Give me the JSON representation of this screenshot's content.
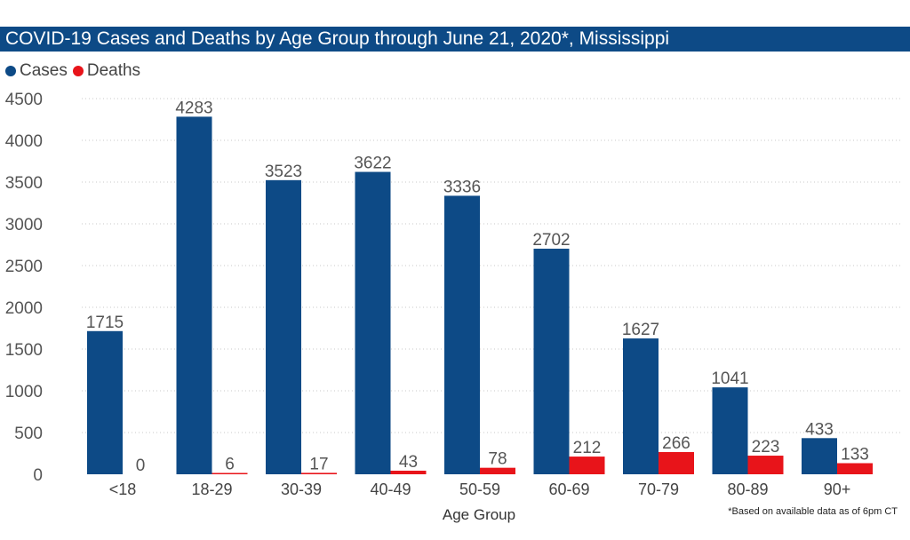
{
  "title": "COVID-19 Cases and Deaths by Age Group through June 21, 2020*, Mississippi",
  "footnote": "*Based on available data as of 6pm CT",
  "colors": {
    "cases": "#0d4a86",
    "deaths": "#e8141a",
    "title_bg": "#0d4a86"
  },
  "chart_data": {
    "type": "bar",
    "title": "COVID-19 Cases and Deaths by Age Group through June 21, 2020*, Mississippi",
    "xlabel": "Age Group",
    "ylabel": "",
    "ylim": [
      0,
      4500
    ],
    "yticks": [
      0,
      500,
      1000,
      1500,
      2000,
      2500,
      3000,
      3500,
      4000,
      4500
    ],
    "grid": true,
    "legend": "top-left",
    "categories": [
      "<18",
      "18-29",
      "30-39",
      "40-49",
      "50-59",
      "60-69",
      "70-79",
      "80-89",
      "90+"
    ],
    "series": [
      {
        "name": "Cases",
        "color": "#0d4a86",
        "values": [
          1715,
          4283,
          3523,
          3622,
          3336,
          2702,
          1627,
          1041,
          433
        ]
      },
      {
        "name": "Deaths",
        "color": "#e8141a",
        "values": [
          0,
          6,
          17,
          43,
          78,
          212,
          266,
          223,
          133
        ]
      }
    ]
  }
}
